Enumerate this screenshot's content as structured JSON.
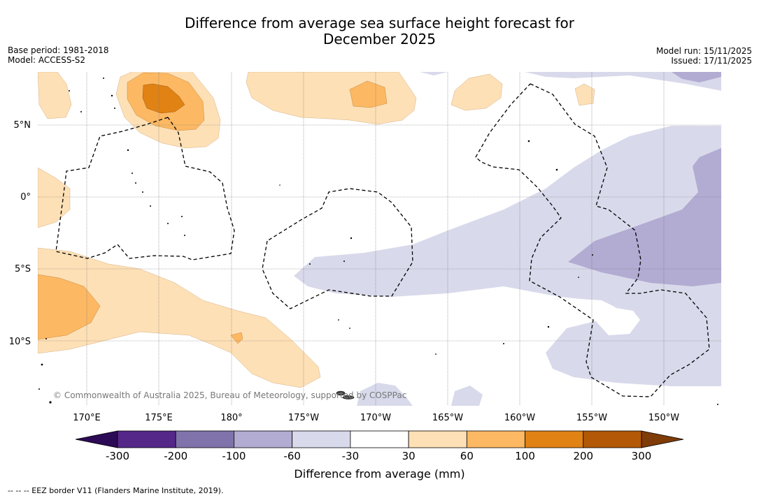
{
  "header": {
    "title_line1": "Difference from average sea surface height forecast for",
    "title_line2": "December 2025",
    "base_period": "Base period: 1981-2018",
    "model": "Model: ACCESS-S2",
    "model_run": "Model run: 15/11/2025",
    "issued": "Issued: 17/11/2025"
  },
  "map": {
    "copyright": "© Commonwealth of Australia 2025, Bureau of Meteorology, supported by COSPPac",
    "lat_labels": [
      "5°N",
      "0°",
      "5°S",
      "10°S"
    ],
    "lon_labels": [
      "170°E",
      "175°E",
      "180°",
      "175°W",
      "170°W",
      "165°W",
      "160°W",
      "155°W",
      "150°W"
    ]
  },
  "colors": {
    "neg300": "#2d0a55",
    "neg200": "#542788",
    "neg100": "#8073ac",
    "neg60": "#b2abd2",
    "neg30": "#d8daeb",
    "neutral": "#ffffff",
    "pos30": "#fee0b6",
    "pos60": "#fdb863",
    "pos100": "#e08214",
    "pos200": "#b35806",
    "pos300": "#7f3b08"
  },
  "chart_data": {
    "type": "heatmap",
    "title": "Difference from average sea surface height forecast for December 2025",
    "variable": "Difference from average (mm)",
    "lon_range": [
      167,
      214
    ],
    "lat_range": [
      -14,
      8
    ],
    "legend_levels": [
      -300,
      -200,
      -100,
      -60,
      -30,
      30,
      60,
      100,
      200,
      300
    ],
    "colorbar_tick_labels": [
      "-300",
      "-200",
      "-100",
      "-60",
      "-30",
      "30",
      "60",
      "100",
      "200",
      "300"
    ],
    "colorbar_label": "Difference from average (mm)",
    "features": [
      {
        "region": "north of Solomon Islands / near 175°E 6°N",
        "range_mm": [
          60,
          200
        ]
      },
      {
        "region": "central Pacific near 172°W 7°N",
        "range_mm": [
          30,
          100
        ]
      },
      {
        "region": "west of map near 168°E 8°S",
        "range_mm": [
          30,
          100
        ]
      },
      {
        "region": "equatorial east Pacific 150°W-140°W",
        "range_mm": [
          -100,
          -30
        ]
      }
    ],
    "footnote": "EEZ border V11 (Flanders Marine Institute, 2019)."
  },
  "footer": {
    "eez_note": "-- -- -- EEZ border V11 (Flanders Marine Institute, 2019)."
  }
}
